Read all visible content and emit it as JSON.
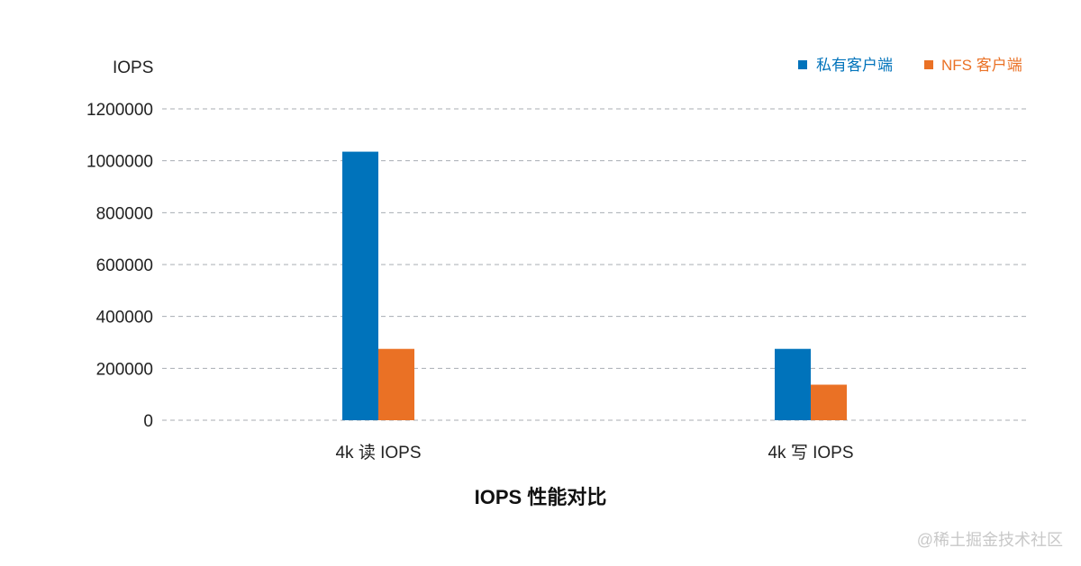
{
  "chart_data": {
    "type": "bar",
    "title": "IOPS 性能对比",
    "ylabel": "IOPS",
    "xlabel": "",
    "categories": [
      "4k 读 IOPS",
      "4k 写 IOPS"
    ],
    "series": [
      {
        "name": "私有客户端",
        "color": "#0073bb",
        "values": [
          1035000,
          275000
        ]
      },
      {
        "name": "NFS 客户端",
        "color": "#ea7125",
        "values": [
          275000,
          137000
        ]
      }
    ],
    "ylim": [
      0,
      1200000
    ],
    "yticks": [
      0,
      200000,
      400000,
      600000,
      800000,
      1000000,
      1200000
    ],
    "ytick_labels": [
      "0",
      "200000",
      "400000",
      "600000",
      "800000",
      "1000000",
      "1200000"
    ],
    "grid": true,
    "legend_position": "top-right"
  },
  "watermark": "@稀土掘金技术社区"
}
